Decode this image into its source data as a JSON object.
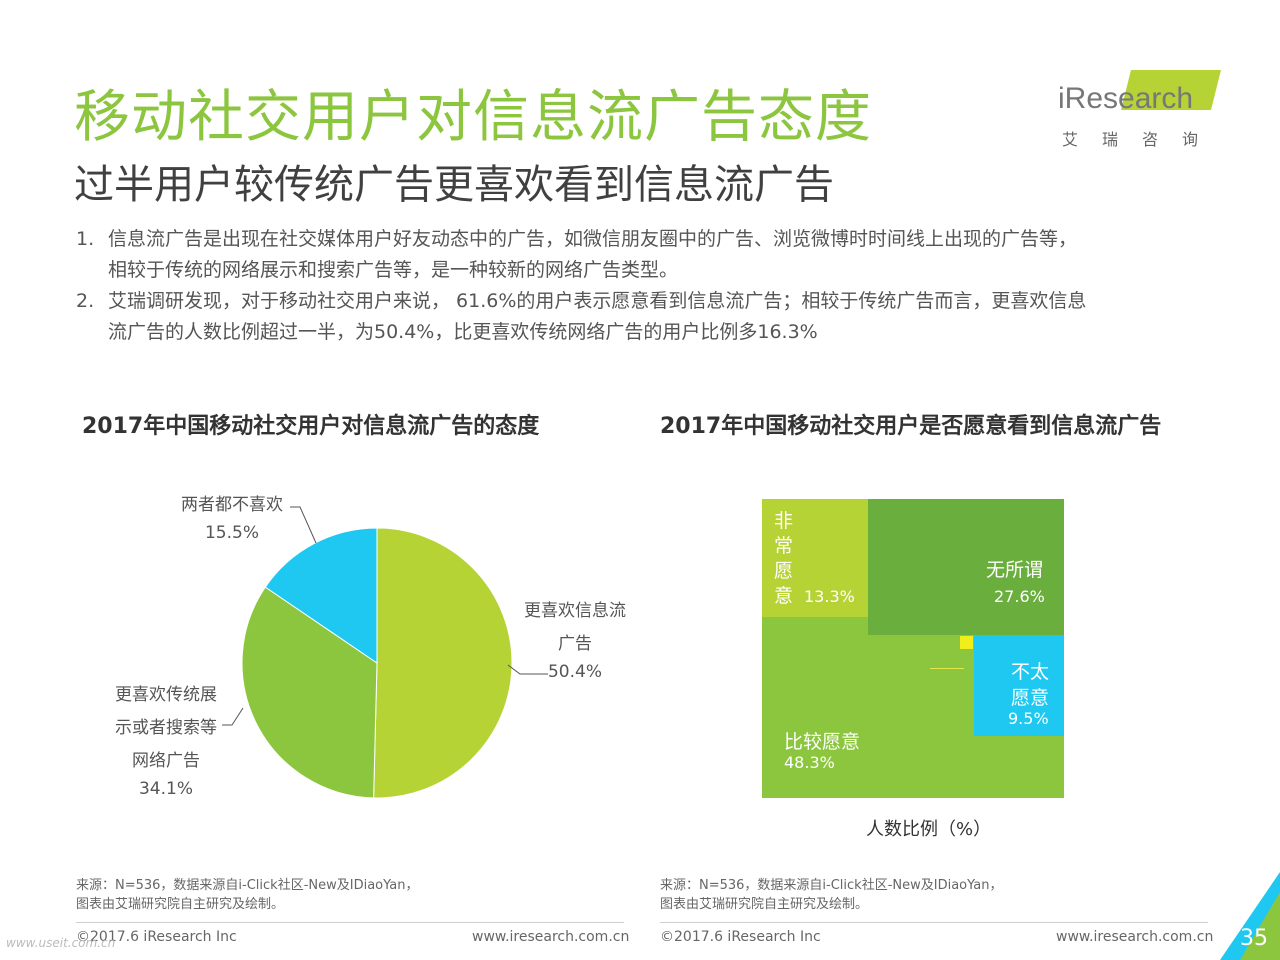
{
  "header": {
    "title": "移动社交用户对信息流广告态度",
    "subtitle": "过半用户较传统广告更喜欢看到信息流广告"
  },
  "logo": {
    "text": "iResearch",
    "cn": "艾瑞咨询"
  },
  "bullets": [
    {
      "num": "1.",
      "lines": [
        "信息流广告是出现在社交媒体用户好友动态中的广告，如微信朋友圈中的广告、浏览微博时时间线上出现的广告等，",
        "相较于传统的网络展示和搜索广告等，是一种较新的网络广告类型。"
      ]
    },
    {
      "num": "2.",
      "lines": [
        "艾瑞调研发现，对于移动社交用户来说， 61.6%的用户表示愿意看到信息流广告；相较于传统广告而言，更喜欢信息",
        "流广告的人数比例超过一半，为50.4%，比更喜欢传统网络广告的用户比例多16.3%"
      ]
    }
  ],
  "chart_data": [
    {
      "type": "pie",
      "title": "2017年中国移动社交用户对信息流广告的态度",
      "slices": [
        {
          "label_lines": [
            "更喜欢信息流",
            "广告"
          ],
          "value": 50.4,
          "display": "50.4%",
          "color": "#b5d335"
        },
        {
          "label_lines": [
            "更喜欢传统展",
            "示或者搜索等",
            "网络广告"
          ],
          "value": 34.1,
          "display": "34.1%",
          "color": "#8cc63f"
        },
        {
          "label_lines": [
            "两者都不喜欢"
          ],
          "value": 15.5,
          "display": "15.5%",
          "color": "#1ec8f0"
        }
      ]
    },
    {
      "type": "treemap",
      "title": "2017年中国移动社交用户是否愿意看到信息流广告",
      "xlabel": "人数比例（%）",
      "cells": [
        {
          "label": "非常愿意",
          "value": 13.3,
          "display": "13.3%",
          "color": "#b5d335"
        },
        {
          "label": "无所谓",
          "value": 27.6,
          "display": "27.6%",
          "color": "#6aae3e"
        },
        {
          "label": "不太愿意",
          "value": 9.5,
          "display": "9.5%",
          "color": "#1ec8f0"
        },
        {
          "label": "比较愿意",
          "value": 48.3,
          "display": "48.3%",
          "color": "#8cc63f"
        }
      ]
    }
  ],
  "footer": {
    "source_line1": "来源：N=536，数据来源自i-Click社区-New及IDiaoYan，",
    "source_line2": "图表由艾瑞研究院自主研究及绘制。",
    "copyright": "©2017.6 iResearch Inc",
    "url": "www.iresearch.com.cn",
    "page": "35",
    "watermark": "www.useit.com.cn"
  }
}
